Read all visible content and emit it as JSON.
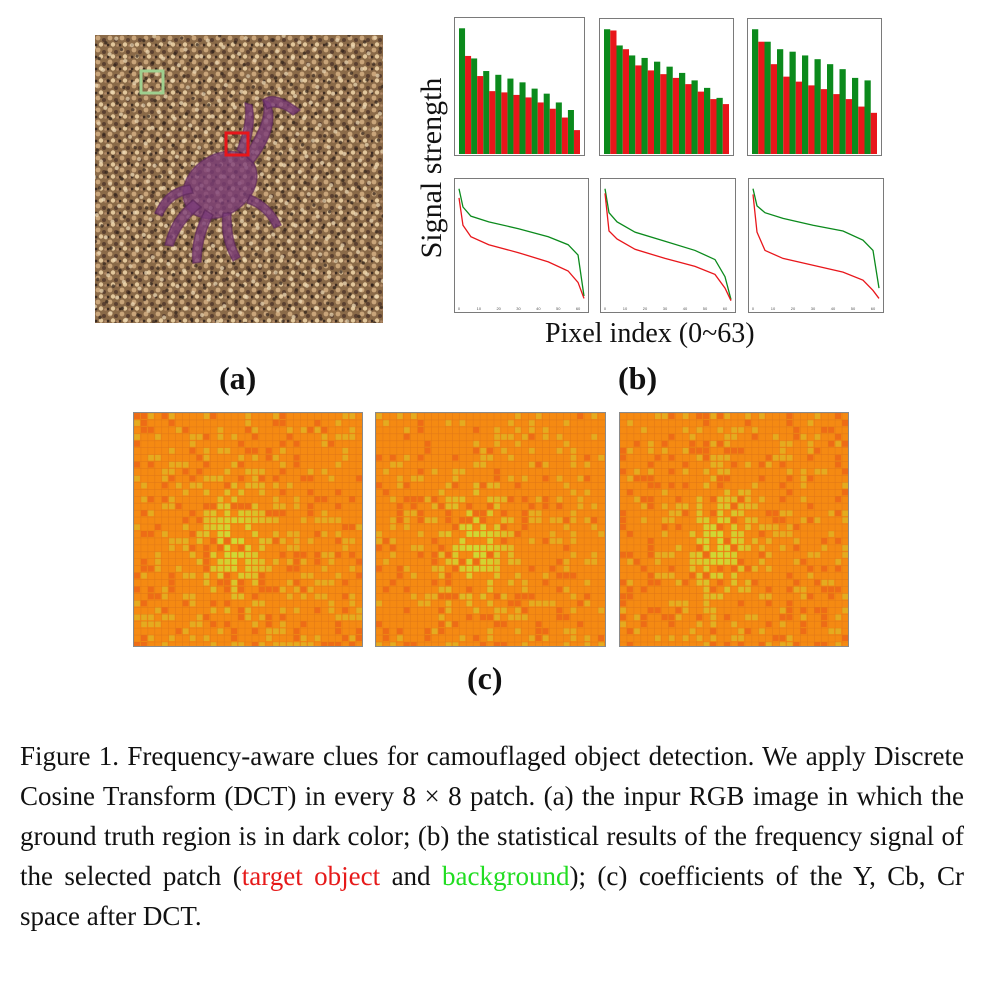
{
  "figure": {
    "y_axis_label": "Signal strength",
    "x_axis_label": "Pixel index (0~63)",
    "subfigure_labels": {
      "a": "(a)",
      "b": "(b)",
      "c": "(c)"
    }
  },
  "colors": {
    "target_object": "#e8161b",
    "background": "#0b8a1c",
    "caption_red": "#e61a1a",
    "caption_green": "#22dd22",
    "heatmap_base": "#f58a12",
    "heatmap_highlight": "#c8e83a"
  },
  "panel_a": {
    "image": "sand-beach-with-camouflaged-crab",
    "selected_patches": [
      {
        "name": "background",
        "color": "#9fcf8f"
      },
      {
        "name": "target object",
        "color": "#e8161b"
      }
    ]
  },
  "chart_data": [
    {
      "type": "bar",
      "panel": "b-top-1",
      "series": [
        {
          "name": "background",
          "values": [
            10,
            7.6,
            6.6,
            6.3,
            6.0,
            5.7,
            5.2,
            4.8,
            4.1,
            3.5
          ]
        },
        {
          "name": "target object",
          "values": [
            7.8,
            6.2,
            5.0,
            4.9,
            4.7,
            4.5,
            4.1,
            3.6,
            2.9,
            1.9
          ]
        }
      ],
      "ylim": [
        0,
        10.5
      ]
    },
    {
      "type": "bar",
      "panel": "b-top-2",
      "series": [
        {
          "name": "background",
          "values": [
            10,
            8.7,
            7.9,
            7.7,
            7.4,
            7.0,
            6.5,
            5.9,
            5.3,
            4.5
          ]
        },
        {
          "name": "target object",
          "values": [
            9.9,
            8.4,
            7.1,
            6.7,
            6.4,
            6.1,
            5.6,
            5.0,
            4.4,
            4.0
          ]
        }
      ],
      "ylim": [
        0,
        10.5
      ]
    },
    {
      "type": "bar",
      "panel": "b-top-3",
      "series": [
        {
          "name": "background",
          "values": [
            10,
            9.0,
            8.4,
            8.2,
            7.9,
            7.6,
            7.2,
            6.8,
            6.1,
            5.9
          ]
        },
        {
          "name": "target object",
          "values": [
            9.0,
            7.2,
            6.2,
            5.8,
            5.5,
            5.2,
            4.8,
            4.4,
            3.8,
            3.3
          ]
        }
      ],
      "ylim": [
        0,
        10.5
      ]
    },
    {
      "type": "line",
      "panel": "b-bottom-1",
      "x_ticks": [
        0,
        10,
        20,
        30,
        40,
        50,
        60
      ],
      "series": [
        {
          "name": "background",
          "points": [
            [
              0,
              10
            ],
            [
              2,
              8.4
            ],
            [
              6,
              7.6
            ],
            [
              15,
              7.1
            ],
            [
              30,
              6.5
            ],
            [
              45,
              5.8
            ],
            [
              55,
              5.1
            ],
            [
              60,
              4.2
            ],
            [
              63,
              0.6
            ]
          ]
        },
        {
          "name": "target object",
          "points": [
            [
              0,
              9.2
            ],
            [
              2,
              6.8
            ],
            [
              6,
              5.8
            ],
            [
              15,
              5.1
            ],
            [
              30,
              4.4
            ],
            [
              45,
              3.6
            ],
            [
              55,
              2.8
            ],
            [
              60,
              1.8
            ],
            [
              63,
              0.4
            ]
          ]
        }
      ],
      "ylim": [
        0,
        10.5
      ],
      "xlim": [
        0,
        63
      ]
    },
    {
      "type": "line",
      "panel": "b-bottom-2",
      "x_ticks": [
        0,
        10,
        20,
        30,
        40,
        50,
        60
      ],
      "series": [
        {
          "name": "background",
          "points": [
            [
              0,
              10
            ],
            [
              2,
              7.9
            ],
            [
              6,
              7.1
            ],
            [
              15,
              6.2
            ],
            [
              30,
              5.4
            ],
            [
              45,
              4.6
            ],
            [
              55,
              3.8
            ],
            [
              60,
              2.3
            ],
            [
              63,
              0.3
            ]
          ]
        },
        {
          "name": "target object",
          "points": [
            [
              0,
              9.6
            ],
            [
              2,
              6.3
            ],
            [
              6,
              5.6
            ],
            [
              15,
              4.7
            ],
            [
              30,
              3.9
            ],
            [
              45,
              3.2
            ],
            [
              55,
              2.5
            ],
            [
              60,
              1.3
            ],
            [
              63,
              0.2
            ]
          ]
        }
      ],
      "ylim": [
        0,
        10.5
      ],
      "xlim": [
        0,
        63
      ]
    },
    {
      "type": "line",
      "panel": "b-bottom-3",
      "x_ticks": [
        0,
        10,
        20,
        30,
        40,
        50,
        60
      ],
      "series": [
        {
          "name": "background",
          "points": [
            [
              0,
              10
            ],
            [
              2,
              8.5
            ],
            [
              6,
              7.9
            ],
            [
              15,
              7.4
            ],
            [
              30,
              6.8
            ],
            [
              45,
              6.3
            ],
            [
              55,
              5.5
            ],
            [
              60,
              4.6
            ],
            [
              63,
              1.3
            ]
          ]
        },
        {
          "name": "target object",
          "points": [
            [
              0,
              9.5
            ],
            [
              2,
              6.2
            ],
            [
              6,
              4.6
            ],
            [
              15,
              3.9
            ],
            [
              30,
              3.3
            ],
            [
              45,
              2.7
            ],
            [
              55,
              2.0
            ],
            [
              60,
              1.1
            ],
            [
              63,
              0.4
            ]
          ]
        }
      ],
      "ylim": [
        0,
        10.5
      ],
      "xlim": [
        0,
        63
      ]
    }
  ],
  "panel_c": {
    "type": "heatmap",
    "maps": [
      {
        "name": "Y"
      },
      {
        "name": "Cb"
      },
      {
        "name": "Cr"
      }
    ]
  },
  "caption": {
    "prefix": "Figure 1.  Frequency-aware clues for camouflaged object detection. We apply Discrete Cosine Transform (DCT) in every 8 × 8 patch. (a) the inpur RGB image in which the ground truth region is in dark color; (b) the statistical results of the frequency signal of the selected patch (",
    "red_text": "target object",
    "middle": " and ",
    "green_text": "background",
    "suffix": "); (c) coefficients of the Y, Cb, Cr space after DCT."
  }
}
